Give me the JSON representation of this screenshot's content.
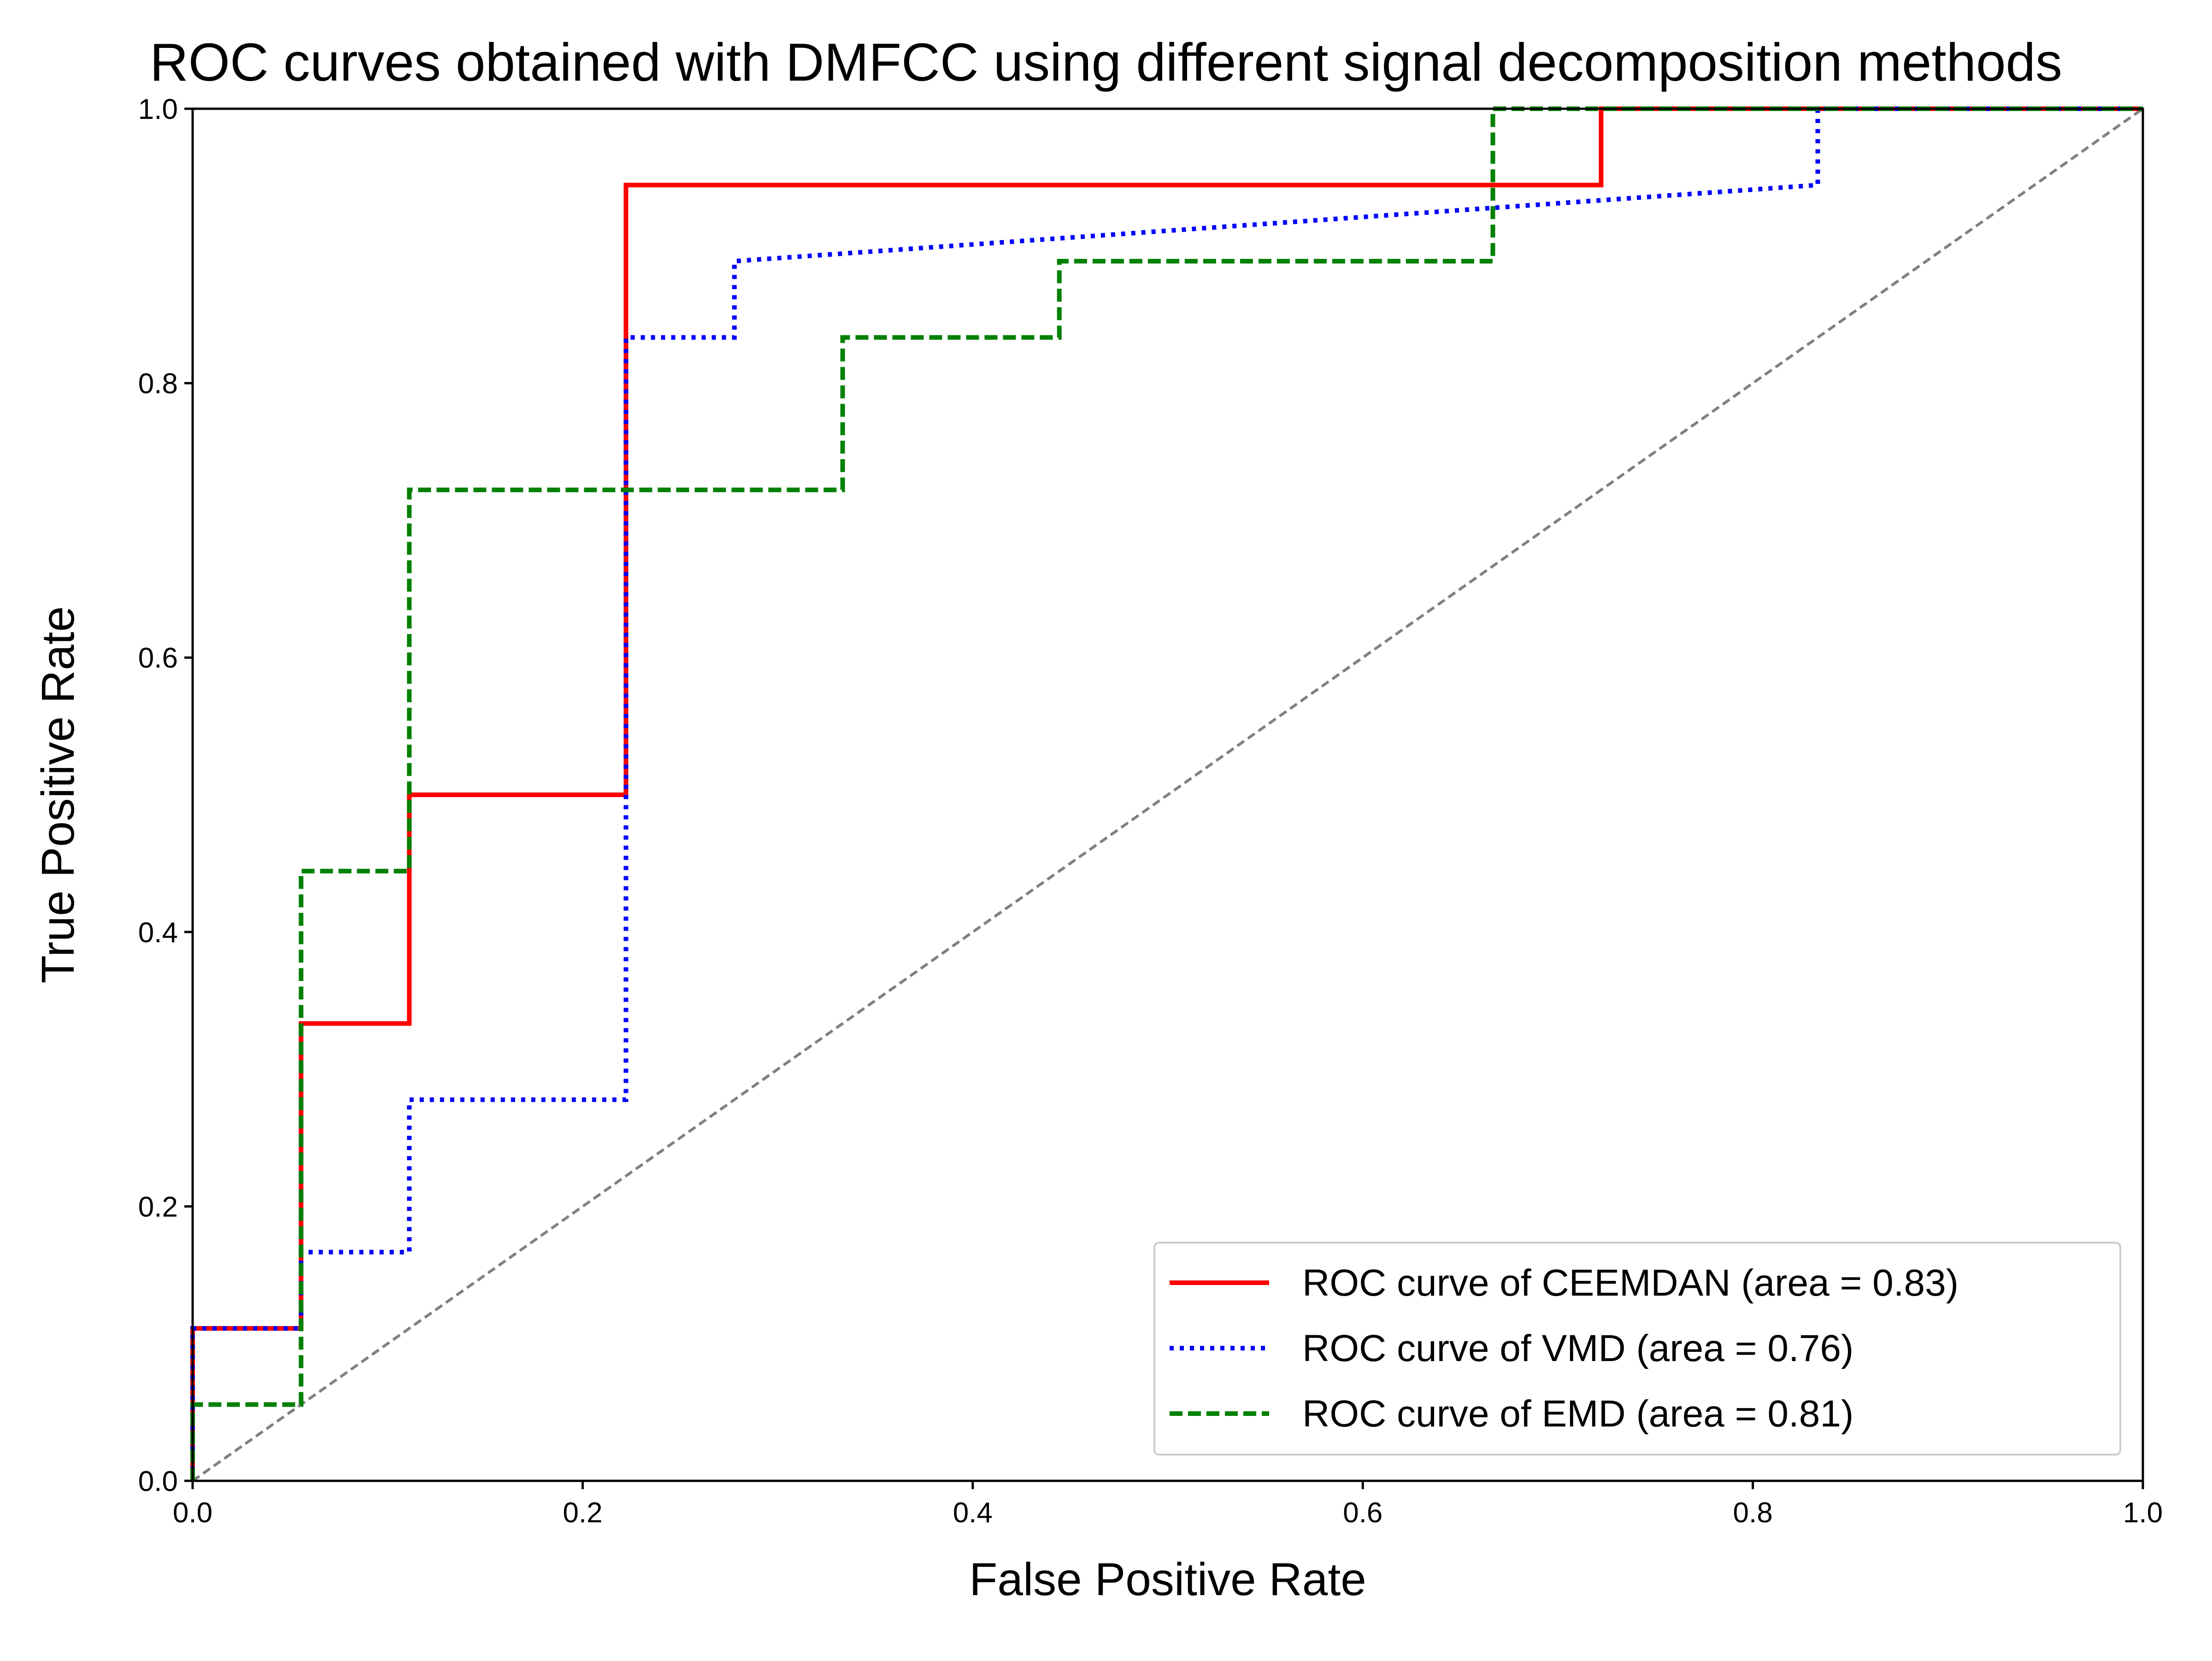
{
  "chart_data": {
    "type": "line",
    "title": "ROC curves obtained with DMFCC using different signal decomposition methods",
    "xlabel": "False Positive Rate",
    "ylabel": "True Positive Rate",
    "xlim": [
      0.0,
      1.0
    ],
    "ylim": [
      0.0,
      1.0
    ],
    "xticks": [
      "0.0",
      "0.2",
      "0.4",
      "0.6",
      "0.8",
      "1.0"
    ],
    "yticks": [
      "0.0",
      "0.2",
      "0.4",
      "0.6",
      "0.8",
      "1.0"
    ],
    "grid": false,
    "legend_position": "lower-right",
    "series": [
      {
        "name": "ROC curve of CEEMDAN (area = 0.83)",
        "color": "#ff0000",
        "dash": "solid",
        "x": [
          0.0,
          0.0,
          0.0556,
          0.0556,
          0.1111,
          0.1111,
          0.2222,
          0.2222,
          0.7222,
          0.7222,
          1.0
        ],
        "y": [
          0.0,
          0.1111,
          0.1111,
          0.3333,
          0.3333,
          0.5,
          0.5,
          0.9444,
          0.9444,
          1.0,
          1.0
        ]
      },
      {
        "name": "ROC curve of VMD (area = 0.76)",
        "color": "#0000ff",
        "dash": "dotted",
        "x": [
          0.0,
          0.0,
          0.0556,
          0.0556,
          0.1111,
          0.1111,
          0.2222,
          0.2222,
          0.2778,
          0.2778,
          0.8333,
          0.8333,
          1.0
        ],
        "y": [
          0.0,
          0.1111,
          0.1111,
          0.1667,
          0.1667,
          0.2778,
          0.2778,
          0.8333,
          0.8333,
          0.8889,
          0.9444,
          1.0,
          1.0
        ]
      },
      {
        "name": "ROC curve of EMD (area = 0.81)",
        "color": "#008000",
        "dash": "dashed",
        "x": [
          0.0,
          0.0,
          0.0556,
          0.0556,
          0.1111,
          0.1111,
          0.3333,
          0.3333,
          0.4444,
          0.4444,
          0.6667,
          0.6667,
          1.0
        ],
        "y": [
          0.0,
          0.0556,
          0.0556,
          0.4444,
          0.4444,
          0.7222,
          0.7222,
          0.8333,
          0.8333,
          0.8889,
          0.8889,
          1.0,
          1.0
        ]
      }
    ],
    "reference_line": {
      "color": "#808080",
      "dash": "dashed",
      "x": [
        0.0,
        1.0
      ],
      "y": [
        0.0,
        1.0
      ]
    }
  }
}
